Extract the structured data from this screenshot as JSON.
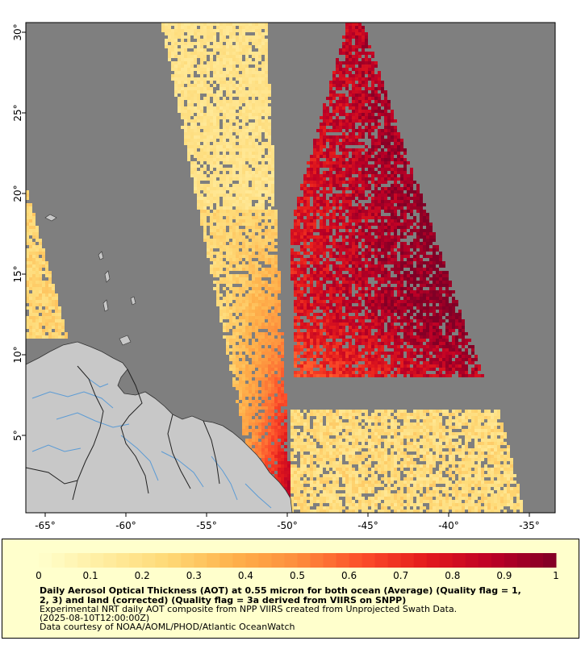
{
  "map": {
    "x_axis": {
      "ticks": [
        "-65°",
        "-60°",
        "-55°",
        "-50°",
        "-45°",
        "-40°",
        "-35°"
      ],
      "values": [
        -65,
        -60,
        -55,
        -50,
        -45,
        -40,
        -35
      ],
      "range": [
        -66.2,
        -33.4
      ]
    },
    "y_axis": {
      "ticks": [
        "5°",
        "10°",
        "15°",
        "20°",
        "25°",
        "30°"
      ],
      "values": [
        5,
        10,
        15,
        20,
        25,
        30
      ],
      "range": [
        0.2,
        30.6
      ]
    },
    "colors": {
      "no_data": "#7f7f7f",
      "land": "#c8c8c8",
      "rivers": "#5b9bd5",
      "borders": "#222222"
    }
  },
  "legend": {
    "scale_labels": [
      "0",
      "0.1",
      "0.2",
      "0.3",
      "0.4",
      "0.5",
      "0.6",
      "0.7",
      "0.8",
      "0.9",
      "1"
    ],
    "scale_values": [
      0,
      0.1,
      0.2,
      0.3,
      0.4,
      0.5,
      0.6,
      0.7,
      0.8,
      0.9,
      1
    ],
    "colormap": [
      "#ffffcc",
      "#ffeda0",
      "#fed976",
      "#feb24c",
      "#fd8d3c",
      "#fc4e2a",
      "#e31a1c",
      "#bd0026",
      "#800026"
    ],
    "title_line1": "Daily Aerosol Optical Thickness (AOT) at 0.55 micron for both ocean (Average) (Quality flag = 1,",
    "title_line2": "2, 3) and land (corrected) (Quality flag = 3a derived from VIIRS on SNPP)",
    "line3": "Experimental NRT daily AOT composite from NPP VIIRS created from Unprojected Swath Data.",
    "line4": "(2025-08-10T12:00:00Z)",
    "line5": "Data courtesy of NOAA/AOML/PHOD/Atlantic OceanWatch"
  }
}
